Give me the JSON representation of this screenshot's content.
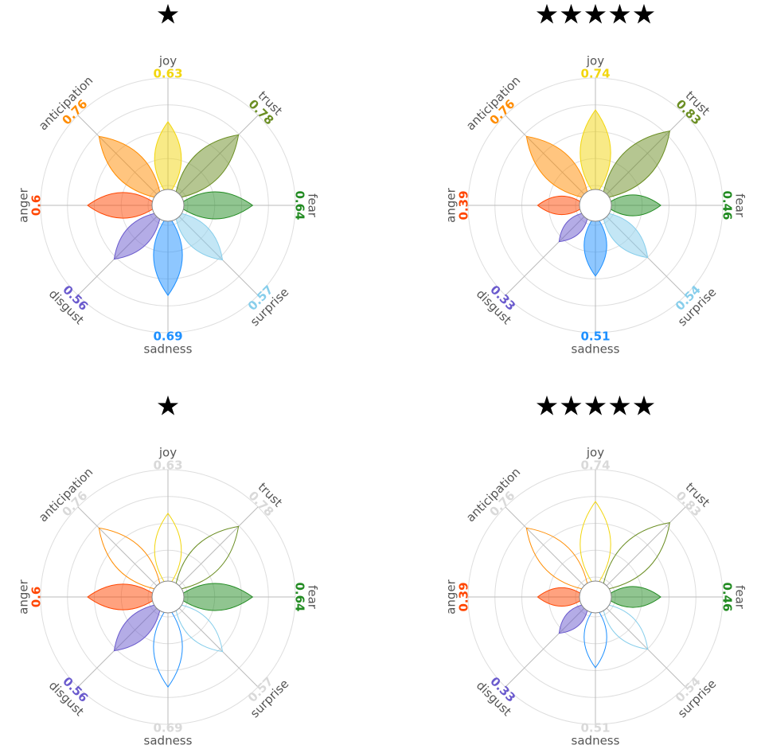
{
  "chart_data": [
    {
      "type": "flower",
      "title": "★",
      "categories": [
        "joy",
        "trust",
        "fear",
        "surprise",
        "sadness",
        "disgust",
        "anger",
        "anticipation"
      ],
      "values": [
        0.63,
        0.78,
        0.64,
        0.57,
        0.69,
        0.56,
        0.6,
        0.76
      ],
      "colors": [
        "#f2d60f",
        "#6b8e23",
        "#228b22",
        "#87ceeb",
        "#1e90ff",
        "#6a5acd",
        "#ff4500",
        "#ff8c00"
      ],
      "highlighted": [
        "joy",
        "trust",
        "fear",
        "surprise",
        "sadness",
        "disgust",
        "anger",
        "anticipation"
      ],
      "ylim": [
        0,
        1
      ],
      "yticks": [
        0,
        0.25,
        0.5,
        0.75,
        1
      ],
      "grid": true
    },
    {
      "type": "flower",
      "title": "★★★★★",
      "categories": [
        "joy",
        "trust",
        "fear",
        "surprise",
        "sadness",
        "disgust",
        "anger",
        "anticipation"
      ],
      "values": [
        0.74,
        0.83,
        0.46,
        0.54,
        0.51,
        0.33,
        0.39,
        0.76
      ],
      "colors": [
        "#f2d60f",
        "#6b8e23",
        "#228b22",
        "#87ceeb",
        "#1e90ff",
        "#6a5acd",
        "#ff4500",
        "#ff8c00"
      ],
      "highlighted": [
        "joy",
        "trust",
        "fear",
        "surprise",
        "sadness",
        "disgust",
        "anger",
        "anticipation"
      ],
      "ylim": [
        0,
        1
      ],
      "yticks": [
        0,
        0.25,
        0.5,
        0.75,
        1
      ],
      "grid": true
    },
    {
      "type": "flower",
      "title": "★",
      "categories": [
        "joy",
        "trust",
        "fear",
        "surprise",
        "sadness",
        "disgust",
        "anger",
        "anticipation"
      ],
      "values": [
        0.63,
        0.78,
        0.64,
        0.57,
        0.69,
        0.56,
        0.6,
        0.76
      ],
      "colors": [
        "#f2d60f",
        "#6b8e23",
        "#228b22",
        "#87ceeb",
        "#1e90ff",
        "#6a5acd",
        "#ff4500",
        "#ff8c00"
      ],
      "highlighted": [
        "fear",
        "disgust",
        "anger"
      ],
      "ylim": [
        0,
        1
      ],
      "yticks": [
        0,
        0.25,
        0.5,
        0.75,
        1
      ],
      "grid": true
    },
    {
      "type": "flower",
      "title": "★★★★★",
      "categories": [
        "joy",
        "trust",
        "fear",
        "surprise",
        "sadness",
        "disgust",
        "anger",
        "anticipation"
      ],
      "values": [
        0.74,
        0.83,
        0.46,
        0.54,
        0.51,
        0.33,
        0.39,
        0.76
      ],
      "colors": [
        "#f2d60f",
        "#6b8e23",
        "#228b22",
        "#87ceeb",
        "#1e90ff",
        "#6a5acd",
        "#ff4500",
        "#ff8c00"
      ],
      "highlighted": [
        "fear",
        "disgust",
        "anger"
      ],
      "ylim": [
        0,
        1
      ],
      "yticks": [
        0,
        0.25,
        0.5,
        0.75,
        1
      ],
      "grid": true
    }
  ]
}
